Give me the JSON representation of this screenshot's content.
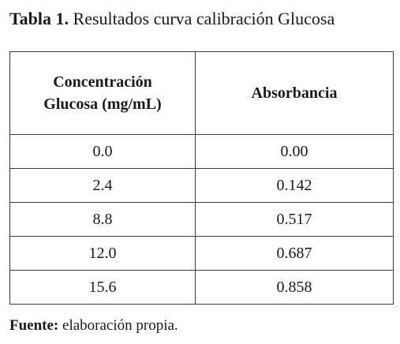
{
  "caption": {
    "label": "Tabla 1.",
    "title": "Resultados curva calibración Glucosa"
  },
  "table": {
    "headers": [
      {
        "line1": "Concentración",
        "line2": "Glucosa (mg/mL)"
      },
      {
        "line1": "Absorbancia",
        "line2": ""
      }
    ],
    "rows": [
      [
        "0.0",
        "0.00"
      ],
      [
        "2.4",
        "0.142"
      ],
      [
        "8.8",
        "0.517"
      ],
      [
        "12.0",
        "0.687"
      ],
      [
        "15.6",
        "0.858"
      ]
    ]
  },
  "source": {
    "label": "Fuente:",
    "text": "elaboración propia."
  }
}
